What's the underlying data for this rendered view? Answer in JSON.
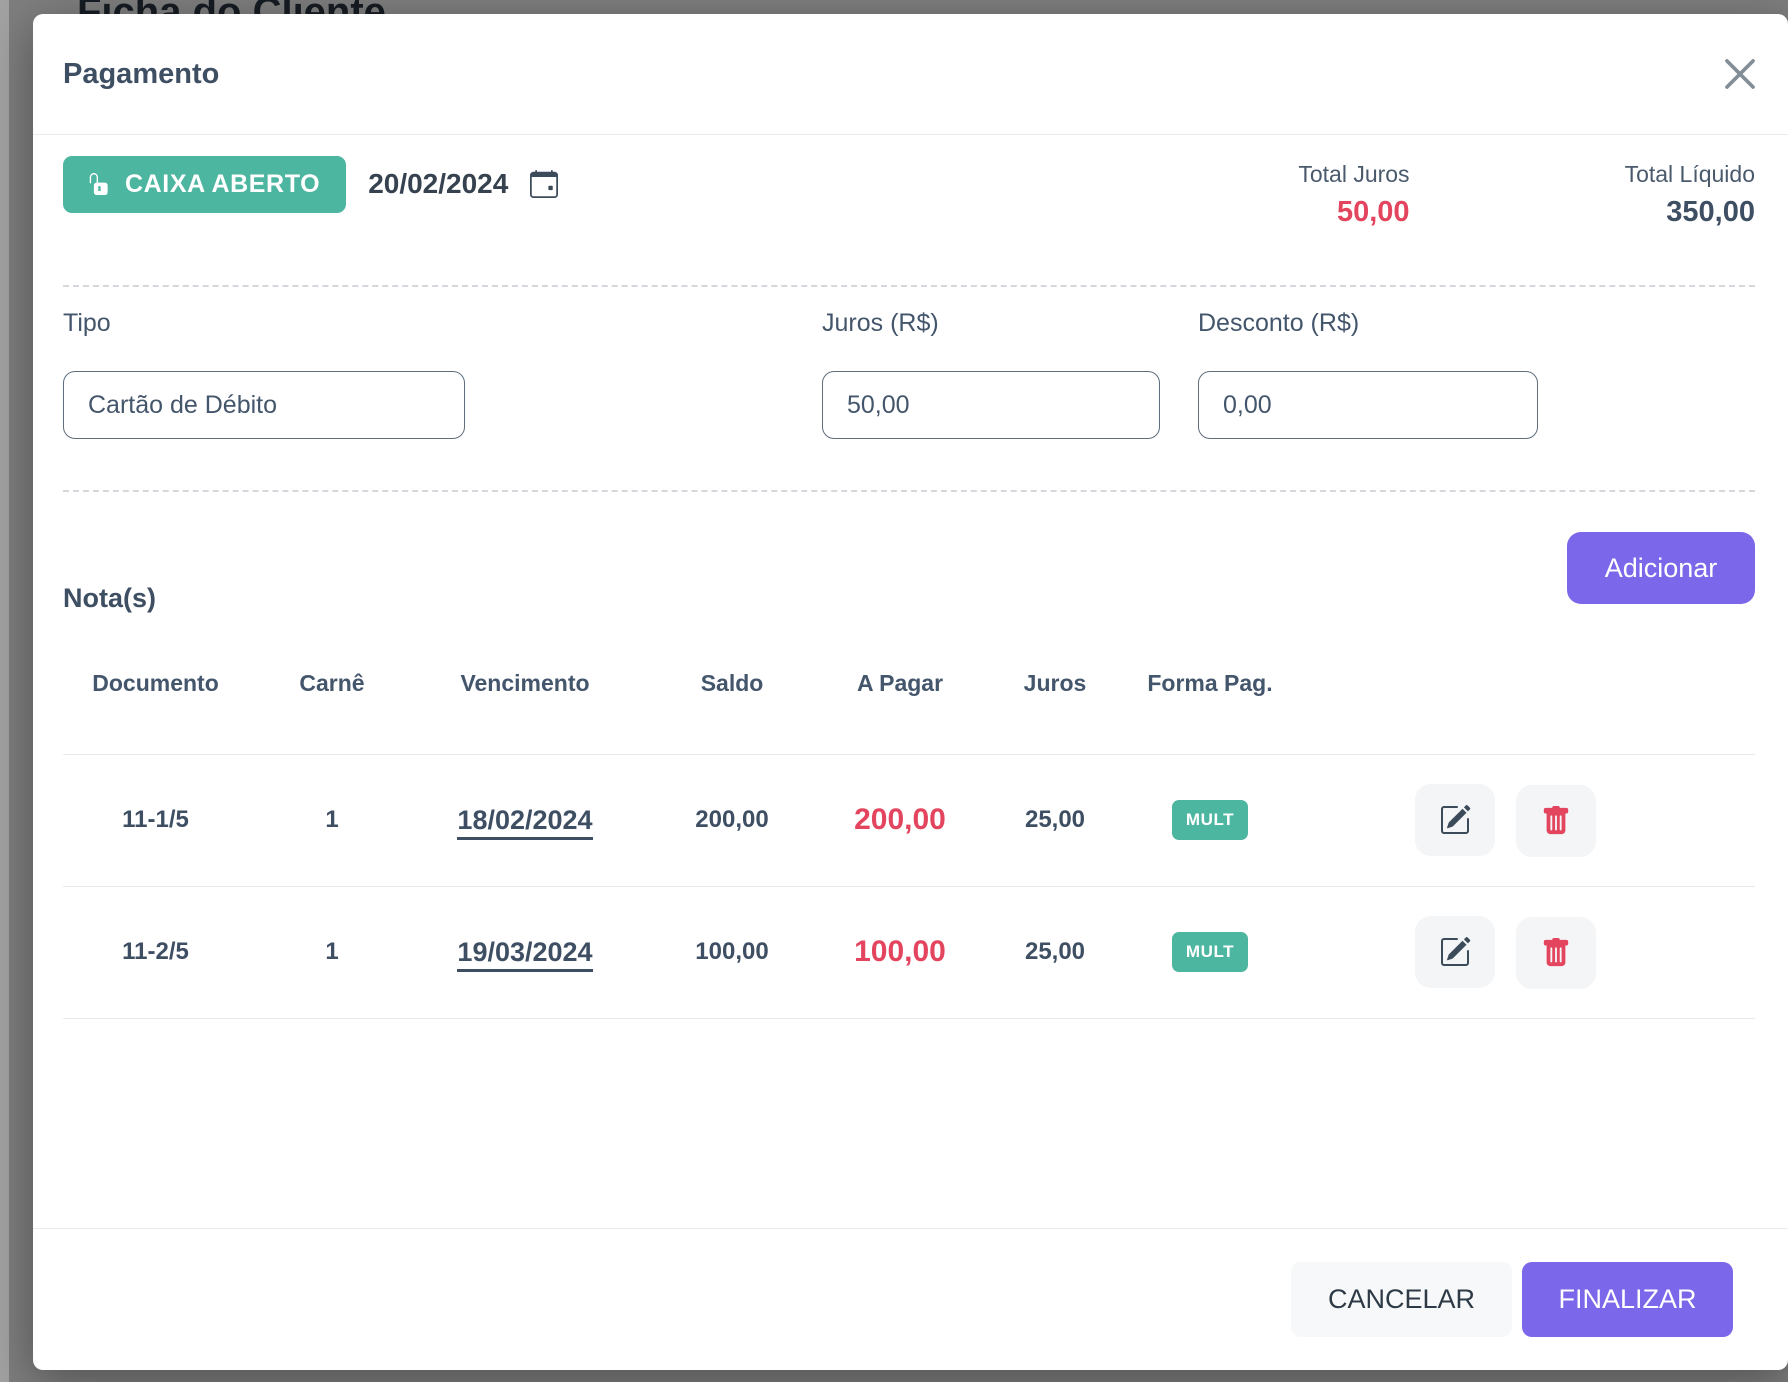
{
  "background": {
    "page_title": "Ficha do Cliente"
  },
  "modal": {
    "title": "Pagamento",
    "header": {
      "status_badge": "CAIXA ABERTO",
      "date": "20/02/2024",
      "total_juros_label": "Total Juros",
      "total_juros_value": "50,00",
      "total_liquido_label": "Total Líquido",
      "total_liquido_value": "350,00"
    },
    "form": {
      "tipo_label": "Tipo",
      "tipo_value": "Cartão de Débito",
      "juros_label": "Juros (R$)",
      "juros_value": "50,00",
      "desconto_label": "Desconto (R$)",
      "desconto_value": "0,00"
    },
    "notes": {
      "add_button": "Adicionar",
      "heading": "Nota(s)",
      "table": {
        "headers": [
          "Documento",
          "Carnê",
          "Vencimento",
          "Saldo",
          "A Pagar",
          "Juros",
          "Forma Pag."
        ],
        "rows": [
          {
            "documento": "11-1/5",
            "carne": "1",
            "vencimento": "18/02/2024",
            "saldo": "200,00",
            "a_pagar": "200,00",
            "juros": "25,00",
            "forma_pag": "MULT"
          },
          {
            "documento": "11-2/5",
            "carne": "1",
            "vencimento": "19/03/2024",
            "saldo": "100,00",
            "a_pagar": "100,00",
            "juros": "25,00",
            "forma_pag": "MULT"
          }
        ]
      }
    },
    "footer": {
      "cancel_label": "CANCELAR",
      "finish_label": "FINALIZAR"
    },
    "icons": {
      "close": "x-icon",
      "status": "unlock-icon",
      "date": "calendar-icon",
      "edit": "pencil-square-icon",
      "delete": "trash-icon"
    },
    "colors": {
      "green": "#4db6a0",
      "purple": "#7b67ea",
      "red": "#e4455e",
      "slate": "#44566c"
    }
  }
}
